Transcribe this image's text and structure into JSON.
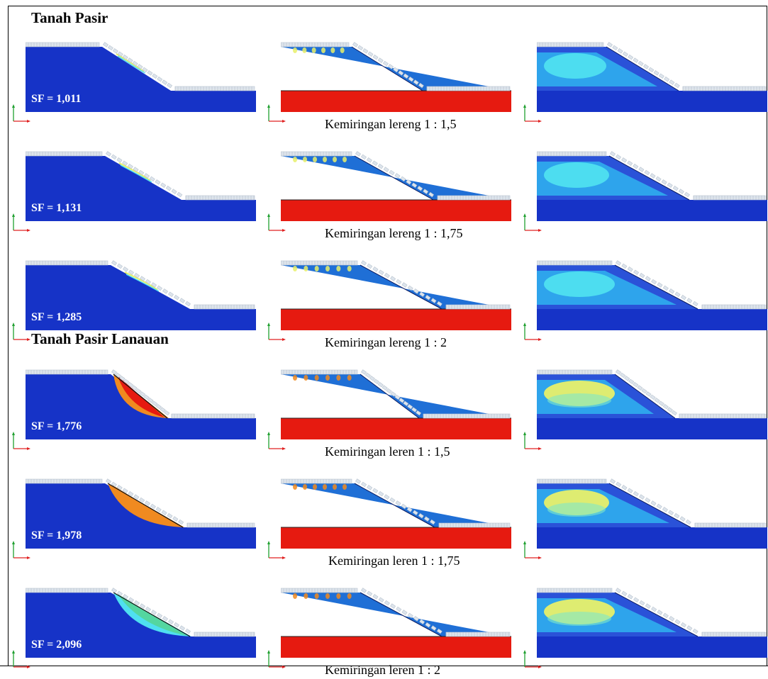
{
  "sections": [
    {
      "title": "Tanah Pasir"
    },
    {
      "title": "Tanah Pasir Lanauan"
    }
  ],
  "rows": [
    {
      "sf": "SF = 1,011",
      "caption": "Kemiringan lereng 1 : 1,5"
    },
    {
      "sf": "SF = 1,131",
      "caption": "Kemiringan lereng 1 : 1,75"
    },
    {
      "sf": "SF = 1,285",
      "caption": "Kemiringan lereng 1 : 2"
    },
    {
      "sf": "SF = 1,776",
      "caption": "Kemiringan leren 1 : 1,5"
    },
    {
      "sf": "SF = 1,978",
      "caption": "Kemiringan leren 1 : 1,75"
    },
    {
      "sf": "SF = 2,096",
      "caption": "Kemiringan leren 1 : 2"
    }
  ],
  "colors": {
    "deep_blue": "#1633c7",
    "mid_blue": "#1f6fd6",
    "light_cyan": "#4fe0f0",
    "pale_yellow": "#e8f06a",
    "red": "#e61a10",
    "orange": "#f08a20",
    "green_cyan": "#54d6a0",
    "axis_green": "#20a030",
    "axis_red": "#e02020",
    "mesh_grey": "#dde4ec"
  }
}
